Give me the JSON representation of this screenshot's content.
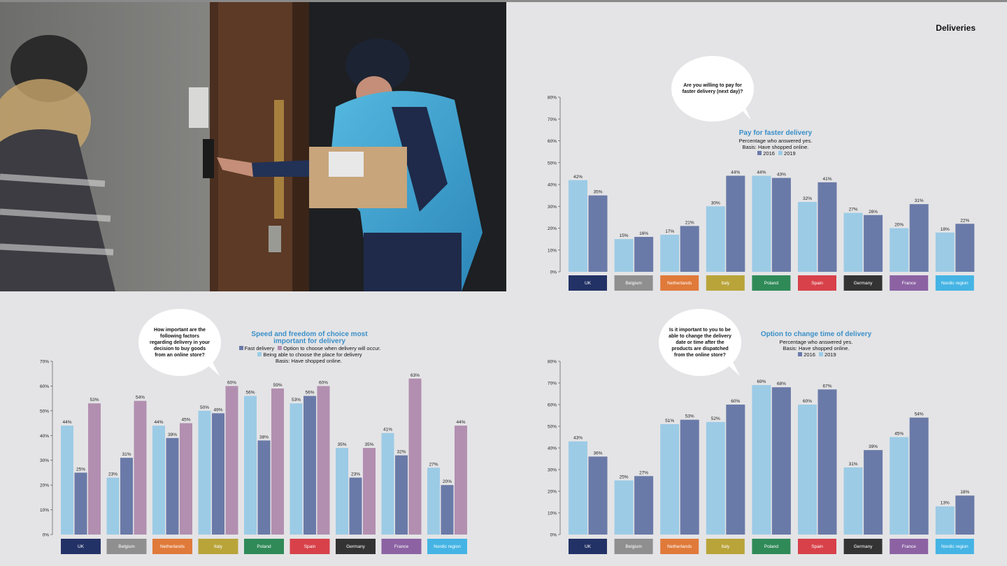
{
  "header": {
    "title": "Deliveries"
  },
  "colors": {
    "light": "#9ccbe6",
    "dark": "#6a7aa8",
    "violet": "#b28fb0",
    "title_blue": "#3a8fc8"
  },
  "photo": {
    "description_icon": "courier-photo"
  },
  "countries": [
    "UK",
    "Belgium",
    "Netherlands",
    "Italy",
    "Poland",
    "Spain",
    "Germany",
    "France",
    "Nordic region"
  ],
  "country_colors": [
    "#233266",
    "#8f8f8f",
    "#e07a3a",
    "#b9a43a",
    "#2f8a58",
    "#d8414a",
    "#333333",
    "#8c62a3",
    "#45b4e4"
  ],
  "chart1": {
    "bubble": "Are you willing to pay for faster delivery (next day)?",
    "title": "Pay for faster delivery",
    "subtitle1": "Percentage who answered yes.",
    "subtitle2": "Basis: Have shopped online.",
    "legend": [
      "2016",
      "2019"
    ]
  },
  "chart2": {
    "bubble": "How important are the following factors regarding delivery in your decision to buy goods from an online store?",
    "title": "Speed and freedom of choice most important for delivery",
    "legend_fast": "Fast delivery",
    "legend_option": "Option to choose when delivery will occur.",
    "legend_place": "Being able to choose the place for delivery",
    "basis": "Basis: Have shopped online."
  },
  "chart3": {
    "bubble": "Is it important to you to be able to change the delivery date or time after the products are dispatched from the online store?",
    "title": "Option to change time of delivery",
    "subtitle1": "Percentage who answered yes.",
    "subtitle2": "Basis: Have shopped online.",
    "legend": [
      "2016",
      "2019"
    ]
  },
  "chart_data": [
    {
      "type": "bar",
      "title": "Pay for faster delivery",
      "categories": [
        "UK",
        "Belgium",
        "Netherlands",
        "Italy",
        "Poland",
        "Spain",
        "Germany",
        "France",
        "Nordic region"
      ],
      "series": [
        {
          "name": "2016",
          "values": [
            42,
            15,
            17,
            30,
            44,
            32,
            27,
            20,
            18
          ]
        },
        {
          "name": "2019",
          "values": [
            35,
            16,
            21,
            44,
            43,
            41,
            26,
            31,
            22
          ]
        }
      ],
      "ylim": [
        0,
        80
      ],
      "yticks": [
        0,
        10,
        20,
        30,
        40,
        50,
        60,
        70,
        80
      ]
    },
    {
      "type": "bar",
      "title": "Speed and freedom of choice most important for delivery",
      "categories": [
        "UK",
        "Belgium",
        "Netherlands",
        "Italy",
        "Poland",
        "Spain",
        "Germany",
        "France",
        "Nordic region"
      ],
      "series": [
        {
          "name": "Being able to choose the place for delivery",
          "values": [
            44,
            23,
            44,
            50,
            56,
            53,
            35,
            41,
            27
          ]
        },
        {
          "name": "Fast delivery",
          "values": [
            25,
            31,
            39,
            49,
            38,
            56,
            23,
            32,
            20
          ]
        },
        {
          "name": "Option to choose when delivery will occur.",
          "values": [
            53,
            54,
            45,
            60,
            59,
            60,
            35,
            63,
            44
          ]
        }
      ],
      "ylim": [
        0,
        70
      ],
      "yticks": [
        0,
        10,
        20,
        30,
        40,
        50,
        60,
        70
      ]
    },
    {
      "type": "bar",
      "title": "Option to change time of delivery",
      "categories": [
        "UK",
        "Belgium",
        "Netherlands",
        "Italy",
        "Poland",
        "Spain",
        "Germany",
        "France",
        "Nordic region"
      ],
      "series": [
        {
          "name": "2016",
          "values": [
            43,
            25,
            51,
            52,
            69,
            60,
            31,
            45,
            13
          ]
        },
        {
          "name": "2019",
          "values": [
            36,
            27,
            53,
            60,
            68,
            67,
            39,
            54,
            18
          ]
        }
      ],
      "ylim": [
        0,
        80
      ],
      "yticks": [
        0,
        10,
        20,
        30,
        40,
        50,
        60,
        70,
        80
      ]
    }
  ]
}
